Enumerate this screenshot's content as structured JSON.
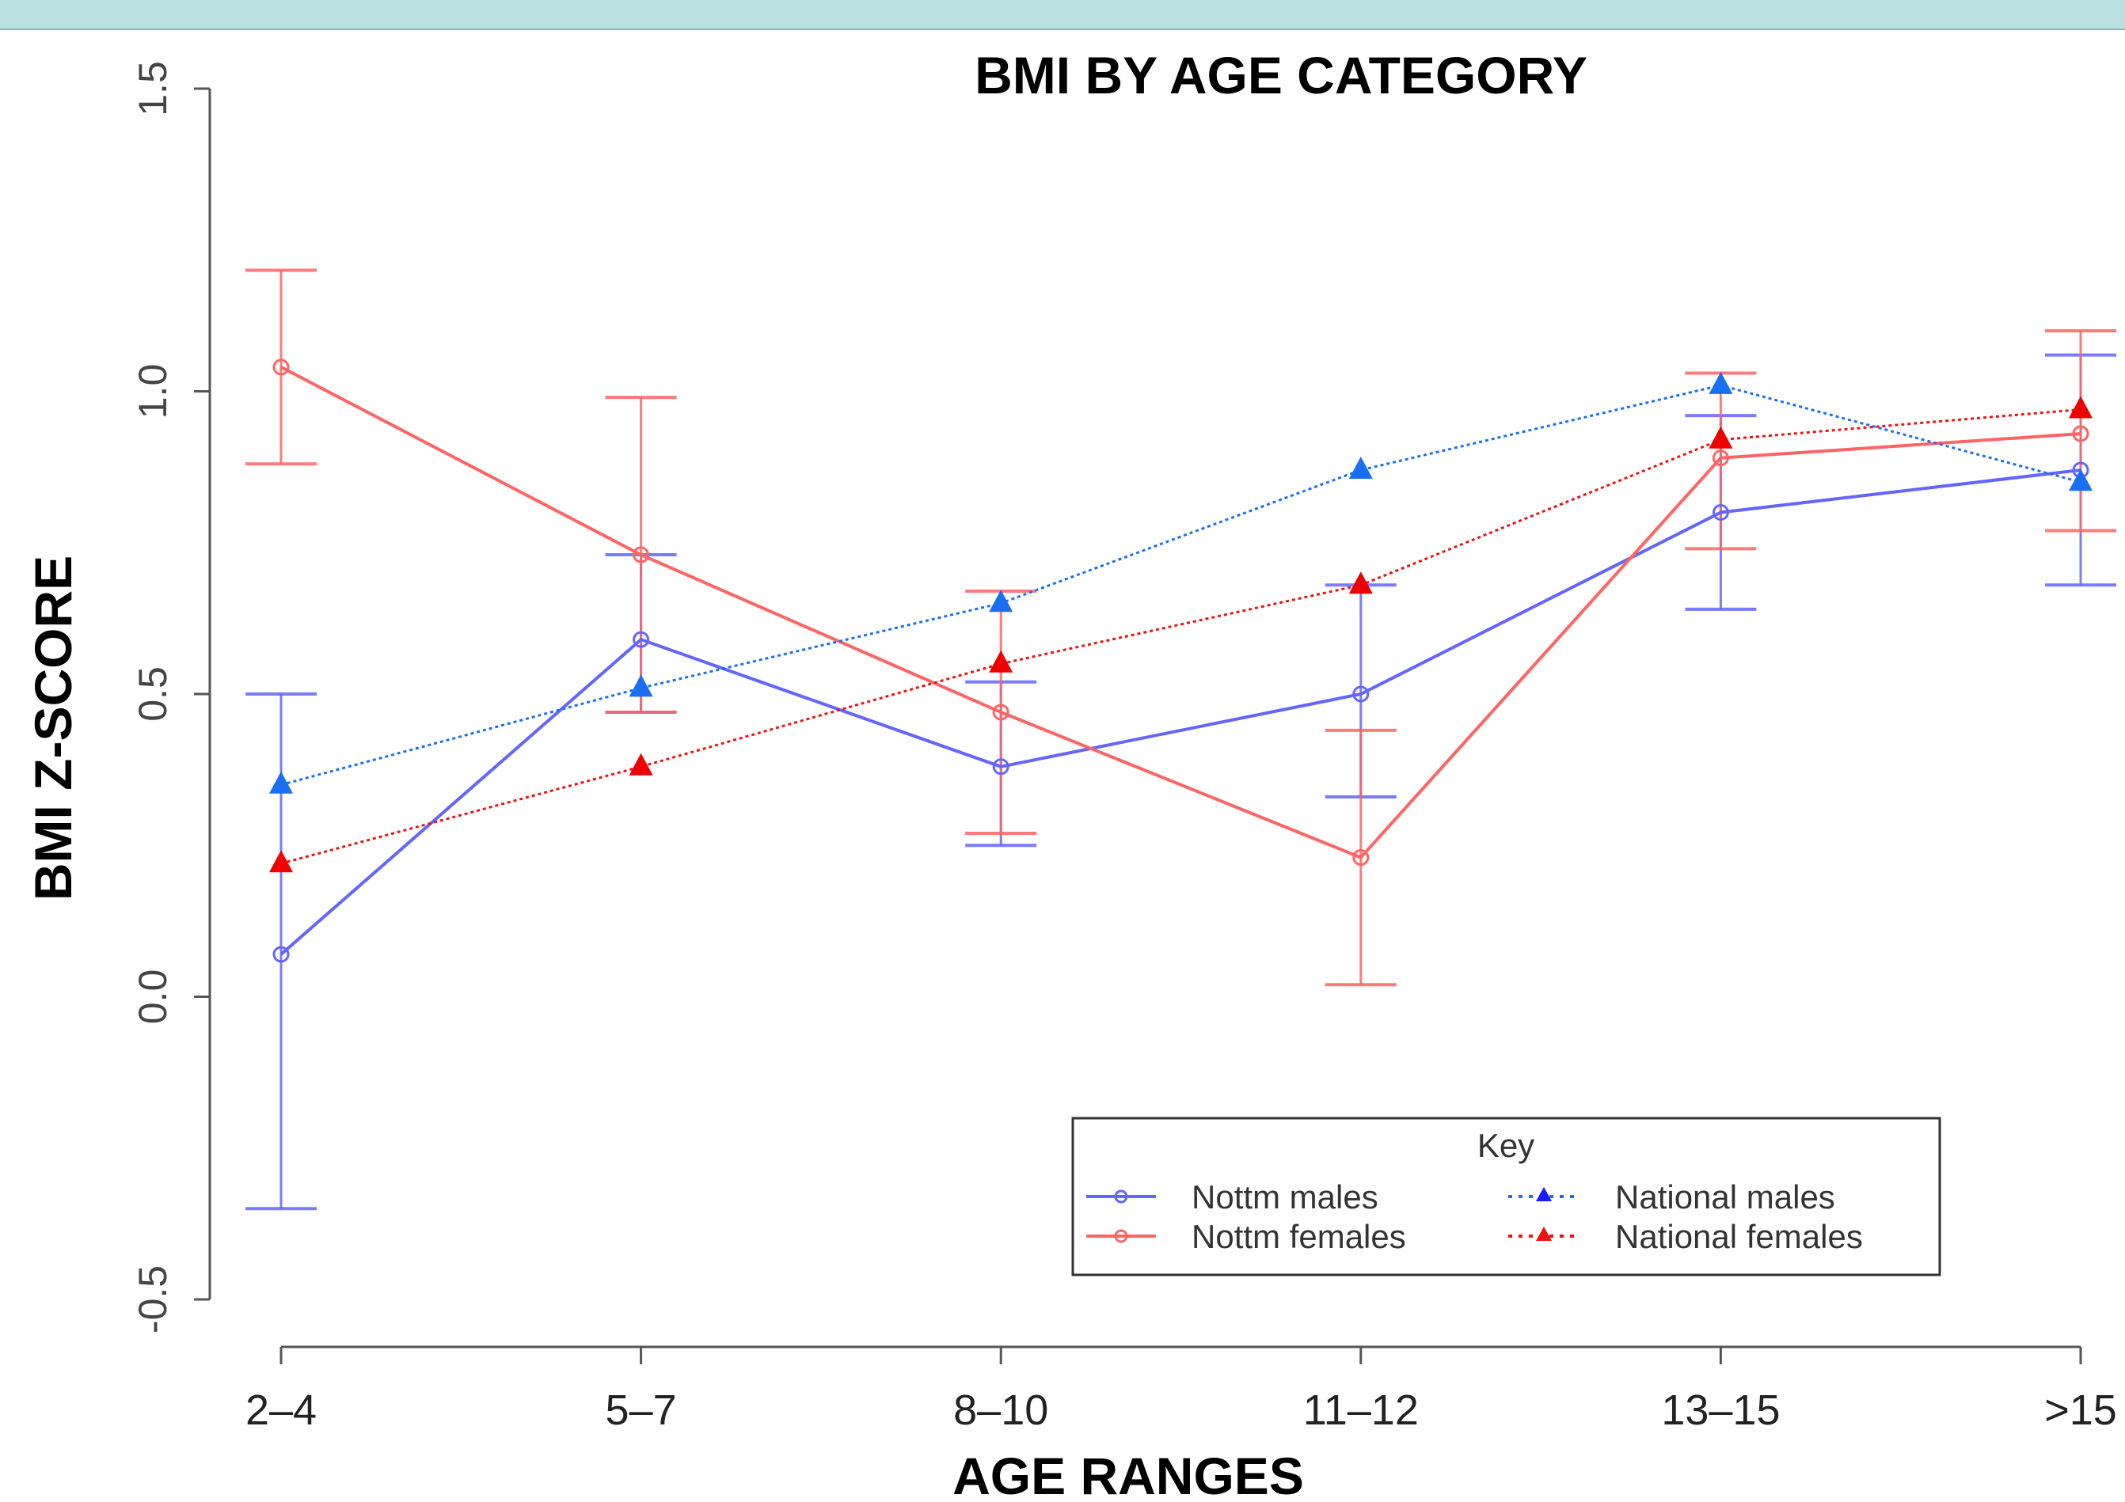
{
  "chart_data": {
    "type": "line",
    "title": "BMI BY AGE CATEGORY",
    "xlabel": "AGE RANGES",
    "ylabel": "BMI Z-SCORE",
    "categories": [
      "2–4",
      "5–7",
      "8–10",
      "11–12",
      "13–15",
      ">15"
    ],
    "ylim": [
      -0.5,
      1.5
    ],
    "yticks": [
      "-0.5",
      "0.0",
      "0.5",
      "1.0",
      "1.5"
    ],
    "legend": {
      "title": "Key",
      "position": "bottom-right"
    },
    "series": [
      {
        "name": "Nottm males",
        "color": "#6464ff",
        "marker": "circle",
        "line": "solid",
        "values": [
          0.07,
          0.59,
          0.38,
          0.5,
          0.8,
          0.87
        ],
        "error_low": [
          -0.35,
          0.47,
          0.25,
          0.33,
          0.64,
          0.68
        ],
        "error_high": [
          0.5,
          0.73,
          0.52,
          0.68,
          0.96,
          1.06
        ]
      },
      {
        "name": "Nottm females",
        "color": "#ff6464",
        "marker": "circle",
        "line": "solid",
        "values": [
          1.04,
          0.73,
          0.47,
          0.23,
          0.89,
          0.93
        ],
        "error_low": [
          0.88,
          0.47,
          0.27,
          0.02,
          0.74,
          0.77
        ],
        "error_high": [
          1.2,
          0.99,
          0.67,
          0.44,
          1.03,
          1.1
        ]
      },
      {
        "name": "National males",
        "color": "#1a6ef0",
        "marker": "triangle",
        "line": "dotted",
        "values": [
          0.35,
          0.51,
          0.65,
          0.87,
          1.01,
          0.85
        ]
      },
      {
        "name": "National females",
        "color": "#ee1111",
        "marker": "triangle",
        "line": "dotted",
        "values": [
          0.22,
          0.38,
          0.55,
          0.68,
          0.92,
          0.97
        ]
      }
    ]
  }
}
